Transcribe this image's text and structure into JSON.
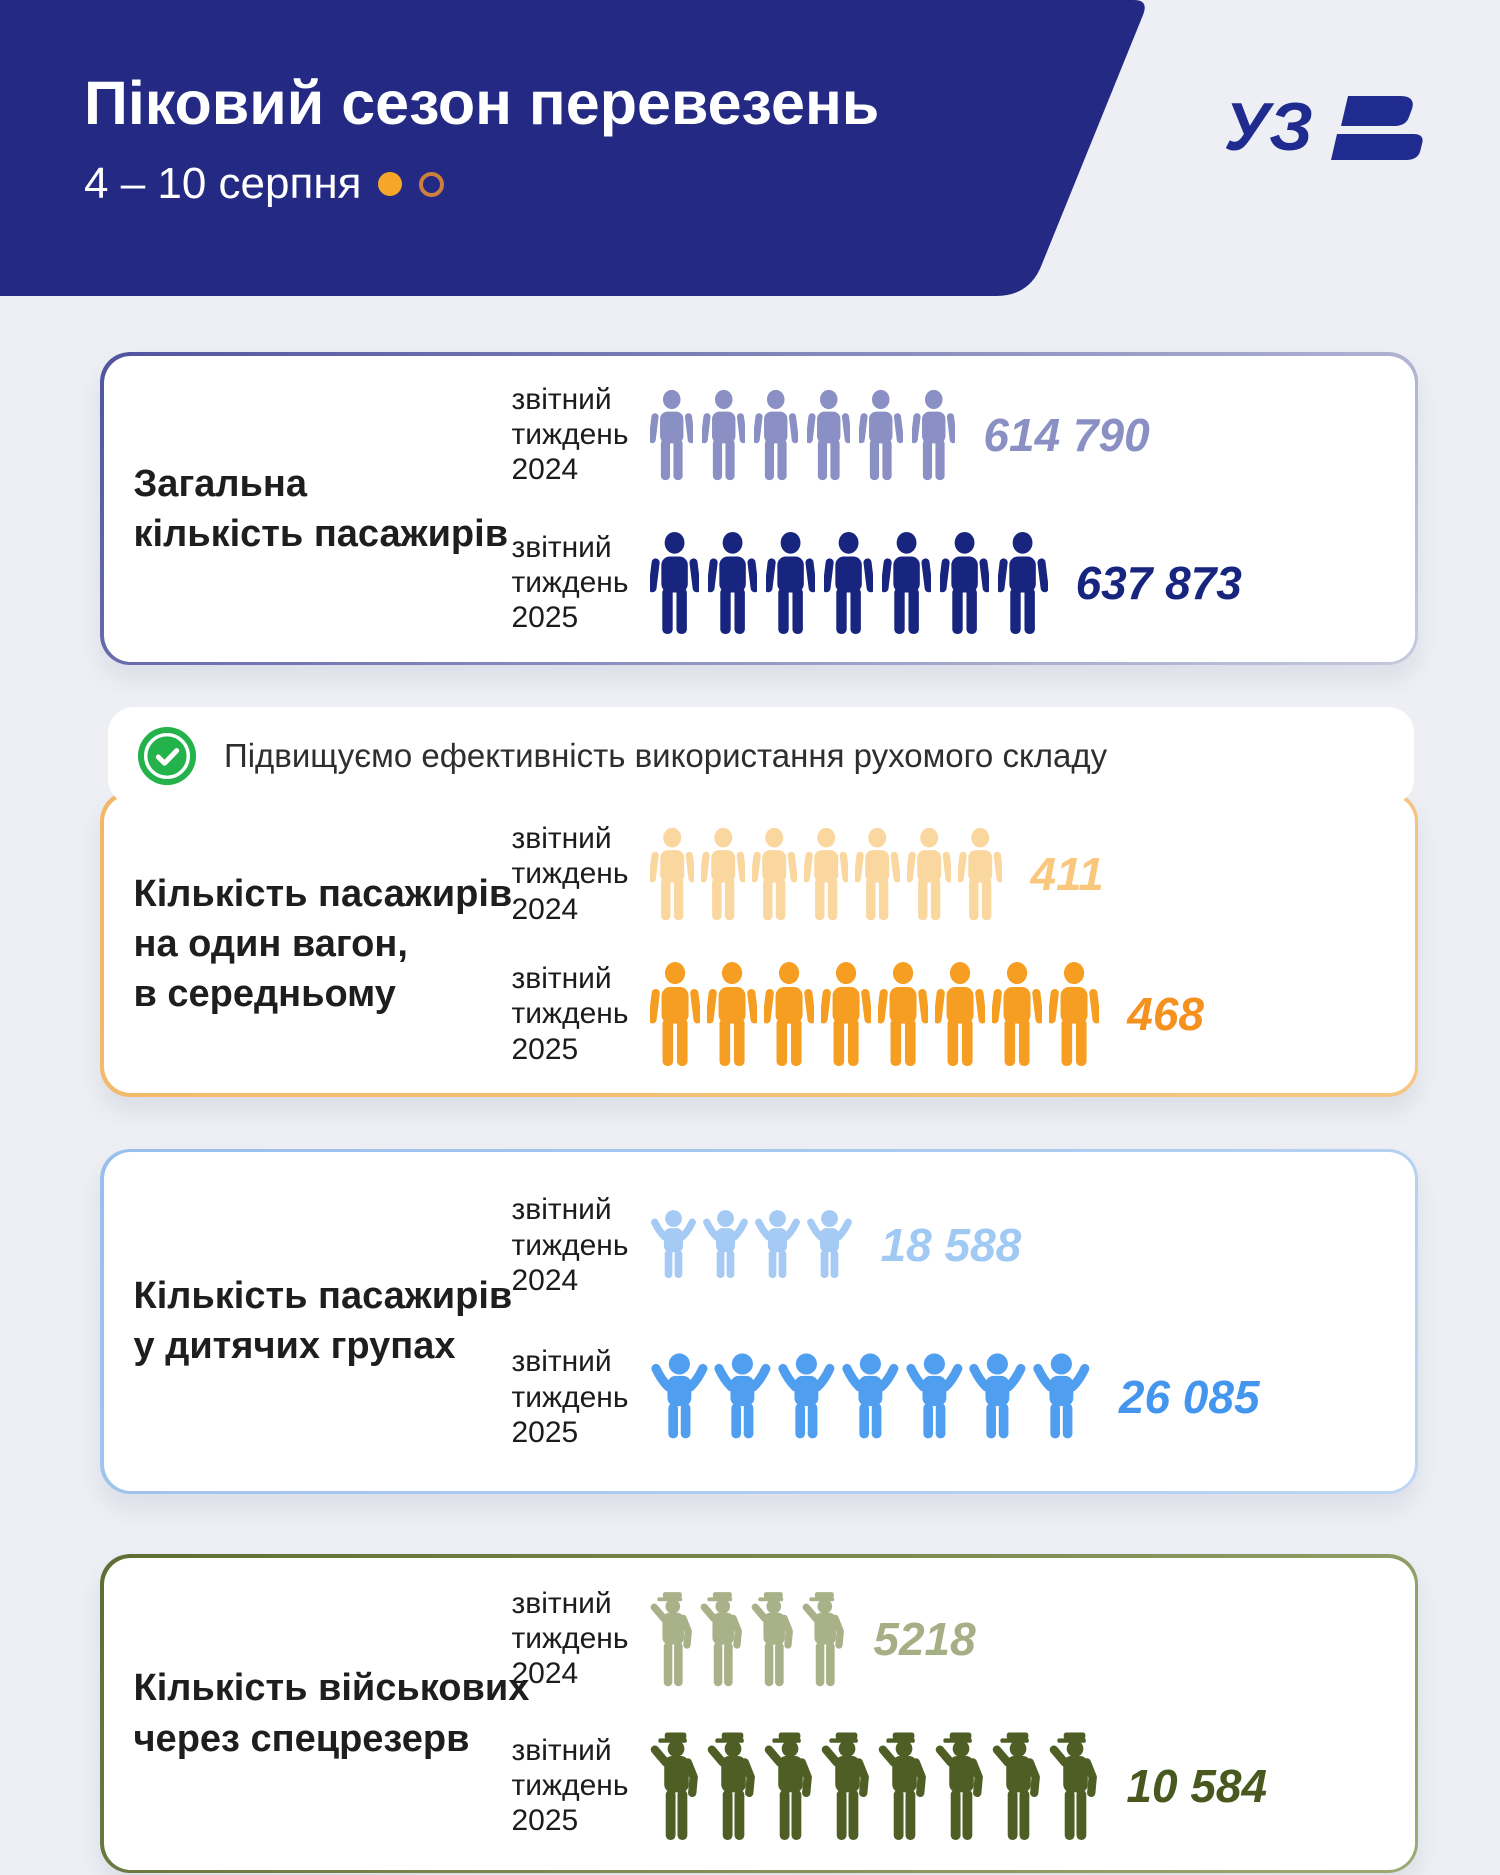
{
  "page": {
    "bg": "#edeff4"
  },
  "header": {
    "title": "Піковий сезон перевезень",
    "subtitle": "4 – 10 серпня",
    "bg_color": "#242a84",
    "dot_filled_color": "#f6a728",
    "dot_outline_color": "#cd7f3e",
    "logo": {
      "text": "УЗ",
      "color": "#1f2b8e"
    }
  },
  "efficiency_note": {
    "text": "Підвищуємо ефективність використання рухомого складу",
    "check_color": "#24b24b"
  },
  "cards": [
    {
      "title": "Загальна\nкількість пасажирів",
      "border": {
        "from": "#50549f",
        "to": "#c6c9de"
      },
      "rows": [
        {
          "label": "звітний\nтиждень\n2024",
          "icon": "person",
          "count": 6,
          "size": 92,
          "color": "#8b90c4",
          "value": "614 790",
          "value_color": "#8b90c4"
        },
        {
          "label": "звітний\nтиждень\n2025",
          "icon": "person",
          "count": 7,
          "size": 104,
          "color": "#18257f",
          "value": "637 873",
          "value_color": "#18257f"
        }
      ]
    },
    {
      "title": "Кількість пасажирів\nна один вагон,\nв середньому",
      "border": {
        "from": "#f2b765",
        "to": "#f5c684"
      },
      "rows": [
        {
          "label": "звітний\nтиждень\n2024",
          "icon": "person",
          "count": 7,
          "size": 94,
          "color": "#fbd7a0",
          "value": "411",
          "value_color": "#f9c87e"
        },
        {
          "label": "звітний\nтиждень\n2025",
          "icon": "person",
          "count": 8,
          "size": 106,
          "color": "#f69e22",
          "value": "468",
          "value_color": "#f5911f"
        }
      ]
    },
    {
      "title": "Кількість пасажирів\nу дитячих групах",
      "border": {
        "from": "#98bfec",
        "to": "#bcd6f4"
      },
      "rows": [
        {
          "label": "звітний\nтиждень\n2024",
          "icon": "child",
          "count": 4,
          "size": 72,
          "color": "#a5cbf4",
          "value": "18 588",
          "value_color": "#a0c9f3"
        },
        {
          "label": "звітний\nтиждень\n2025",
          "icon": "child",
          "count": 7,
          "size": 90,
          "color": "#4f9ef0",
          "value": "26 085",
          "value_color": "#4495ee"
        }
      ]
    },
    {
      "title": "Кількість військових\nчерез спецрезерв",
      "border": {
        "from": "#5e6d34",
        "to": "#9daa73"
      },
      "rows": [
        {
          "label": "звітний\nтиждень\n2024",
          "icon": "soldier",
          "count": 4,
          "size": 98,
          "color": "#a8b188",
          "value": "5218",
          "value_color": "#a5ae84"
        },
        {
          "label": "звітний\nтиждень\n2025",
          "icon": "soldier",
          "count": 8,
          "size": 112,
          "color": "#4e5e24",
          "value": "10 584",
          "value_color": "#48581f"
        }
      ]
    }
  ],
  "chart_data": [
    {
      "type": "pictogram",
      "title": "Загальна кількість пасажирів",
      "categories": [
        "звітний тиждень 2024",
        "звітний тиждень 2025"
      ],
      "values": [
        614790,
        637873
      ],
      "icons_shown": [
        6,
        7
      ]
    },
    {
      "type": "pictogram",
      "title": "Кількість пасажирів на один вагон, в середньому",
      "categories": [
        "звітний тиждень 2024",
        "звітний тиждень 2025"
      ],
      "values": [
        411,
        468
      ],
      "icons_shown": [
        7,
        8
      ]
    },
    {
      "type": "pictogram",
      "title": "Кількість пасажирів у дитячих групах",
      "categories": [
        "звітний тиждень 2024",
        "звітний тиждень 2025"
      ],
      "values": [
        18588,
        26085
      ],
      "icons_shown": [
        4,
        7
      ]
    },
    {
      "type": "pictogram",
      "title": "Кількість військових через спецрезерв",
      "categories": [
        "звітний тиждень 2024",
        "звітний тиждень 2025"
      ],
      "values": [
        5218,
        10584
      ],
      "icons_shown": [
        4,
        8
      ]
    }
  ]
}
